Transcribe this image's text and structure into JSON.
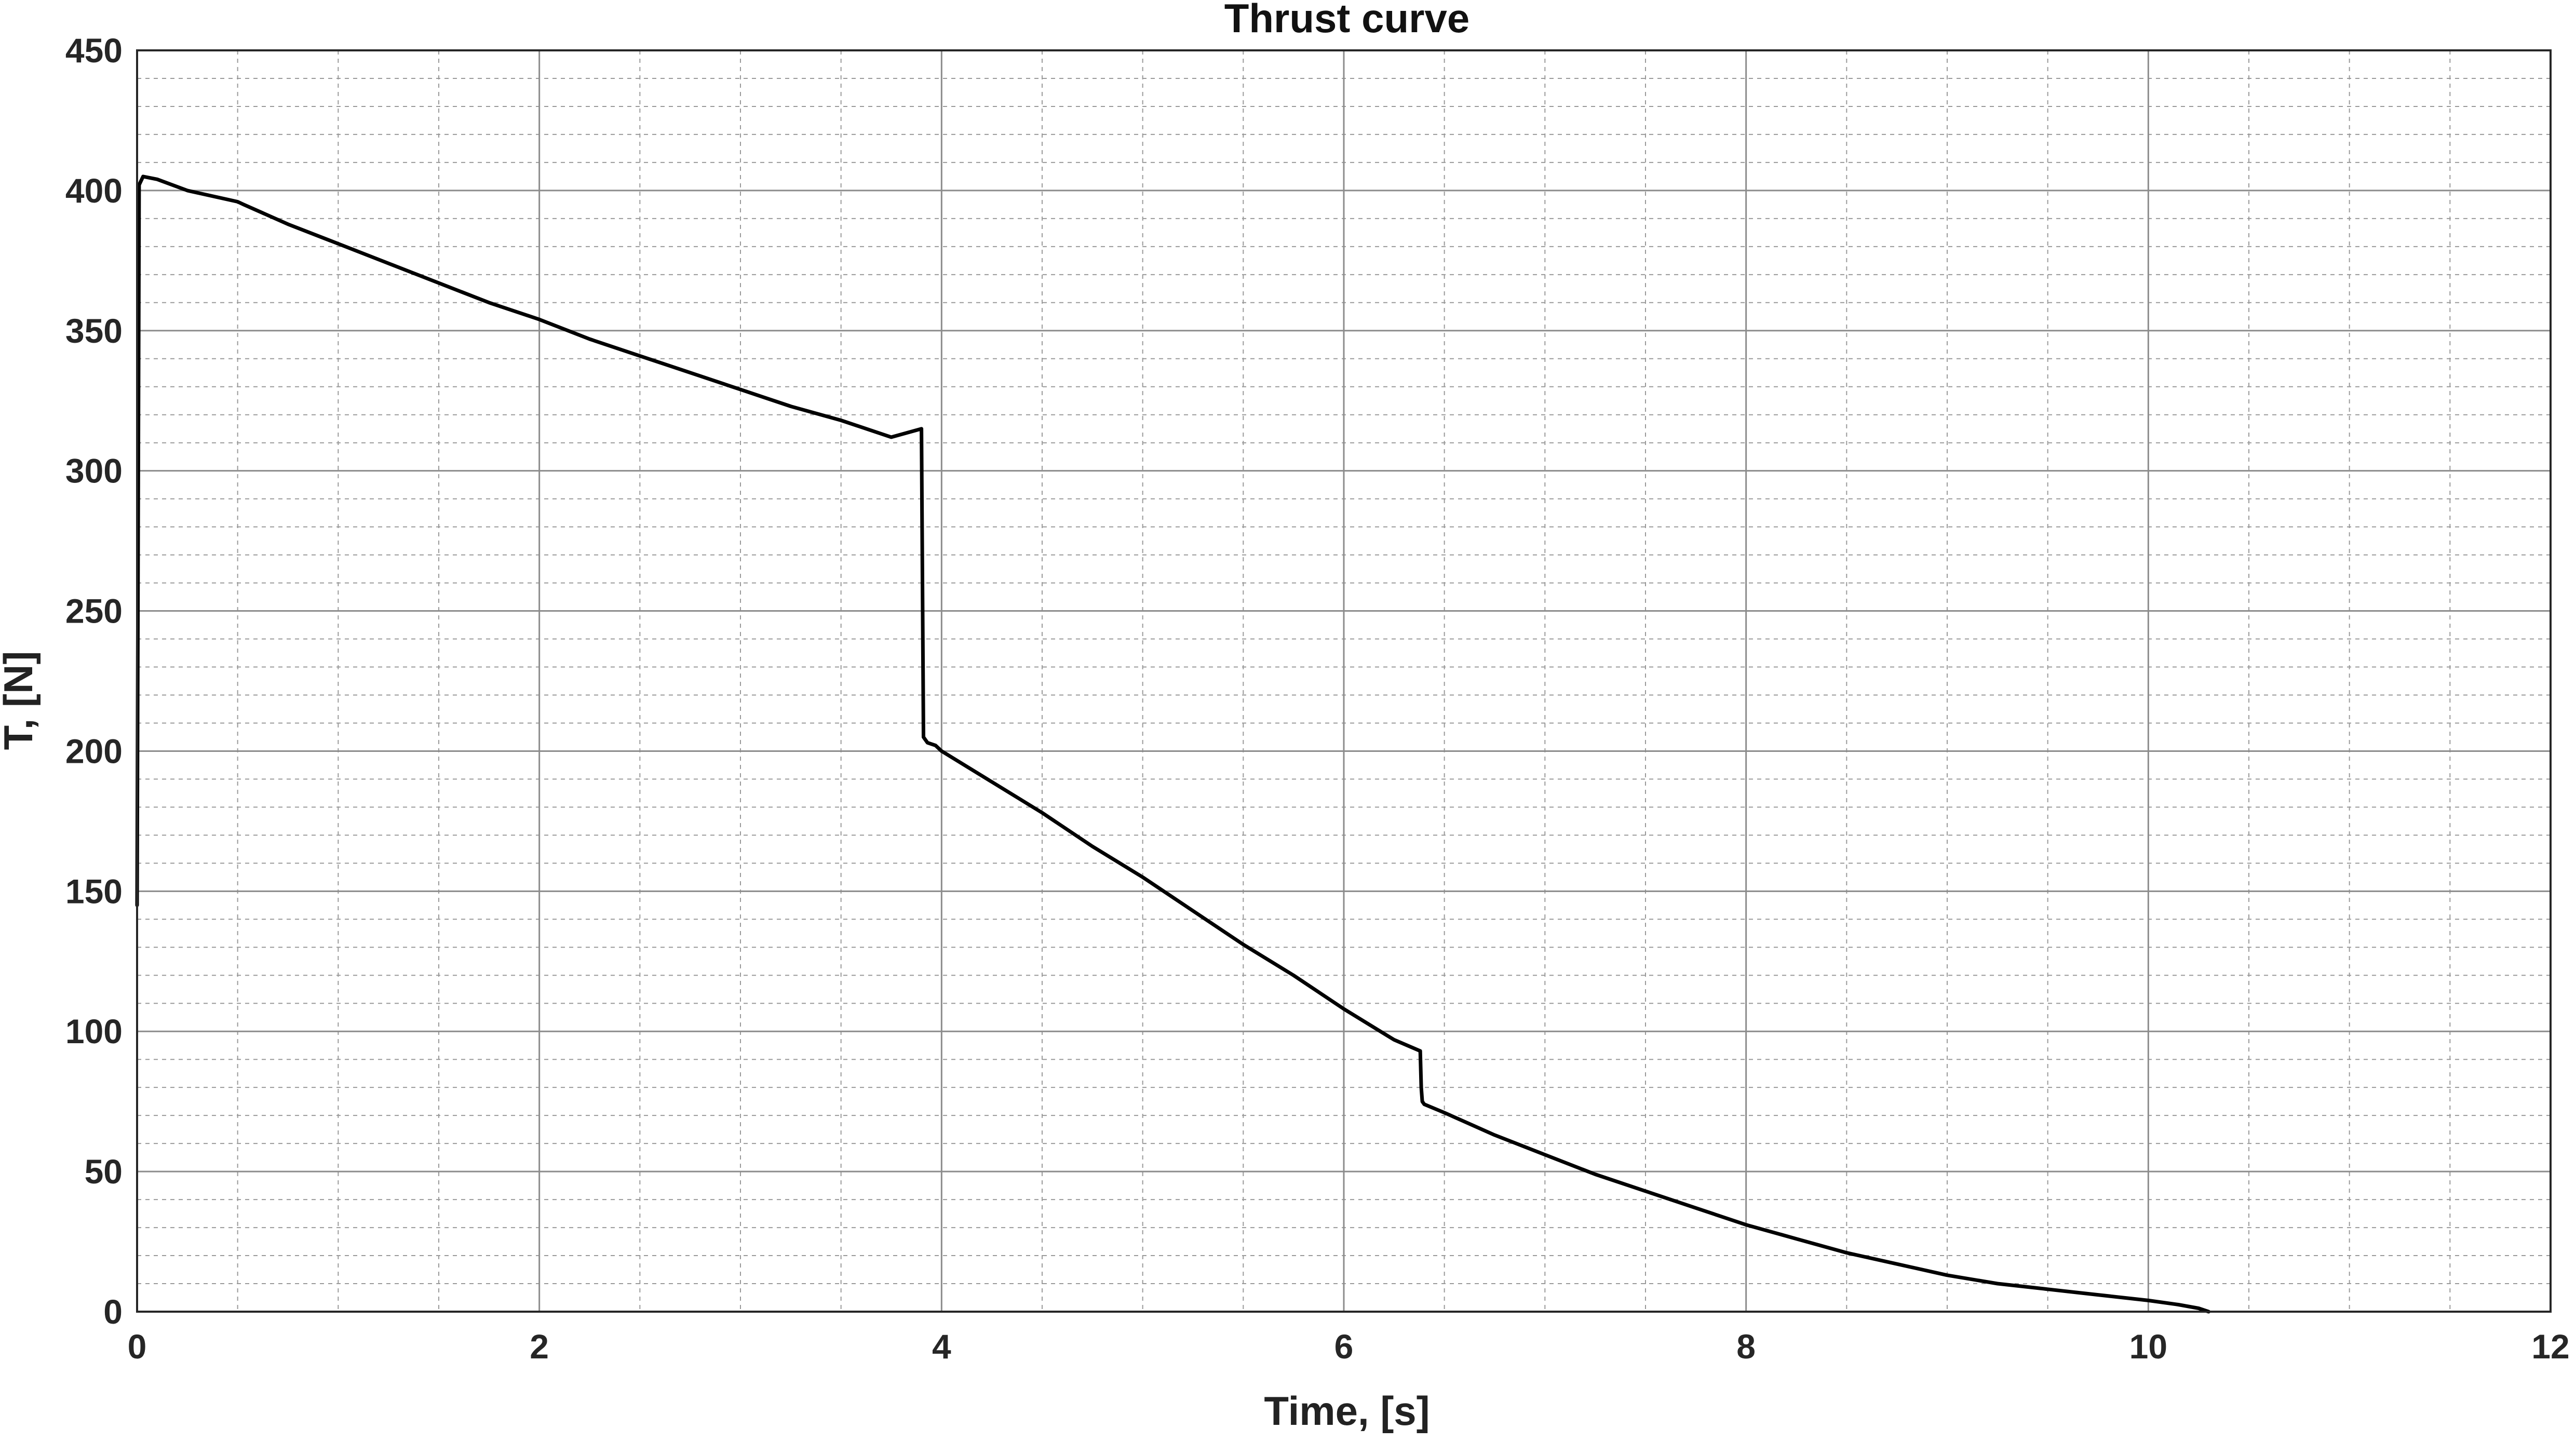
{
  "chart_data": {
    "type": "line",
    "title": "Thrust curve",
    "xlabel": "Time, [s]",
    "ylabel": "T, [N]",
    "xlim": [
      0,
      12
    ],
    "ylim": [
      0,
      450
    ],
    "xticks": [
      0,
      2,
      4,
      6,
      8,
      10,
      12
    ],
    "yticks": [
      0,
      50,
      100,
      150,
      200,
      250,
      300,
      350,
      400,
      450
    ],
    "x_minor_step": 0.5,
    "y_minor_step": 10,
    "grid": true,
    "minor_grid": true,
    "legend": "none",
    "line_color": "#000000",
    "series": [
      {
        "x": [
          0.0,
          0.01,
          0.03,
          0.1,
          0.25,
          0.5,
          0.53,
          0.75,
          1.0,
          1.25,
          1.5,
          1.75,
          2.0,
          2.25,
          2.5,
          2.75,
          3.0,
          3.25,
          3.5,
          3.75,
          3.9,
          3.91,
          3.92,
          3.93,
          3.97,
          4.0,
          4.25,
          4.5,
          4.75,
          5.0,
          5.25,
          5.5,
          5.75,
          6.0,
          6.25,
          6.38,
          6.385,
          6.39,
          6.4,
          6.5,
          6.75,
          7.0,
          7.25,
          7.5,
          7.75,
          8.0,
          8.25,
          8.5,
          8.75,
          9.0,
          9.25,
          9.5,
          9.75,
          10.0,
          10.15,
          10.25,
          10.3
        ],
        "y": [
          145,
          402,
          405,
          404,
          400,
          396,
          395,
          388,
          381,
          374,
          367,
          360,
          354,
          347,
          341,
          335,
          329,
          323,
          318,
          312,
          315,
          205,
          204,
          203,
          202,
          200,
          189,
          178,
          166,
          155,
          143,
          131,
          120,
          108,
          97,
          93,
          80,
          75,
          74,
          71,
          63,
          56,
          49,
          43,
          37,
          31,
          26,
          21,
          17,
          13,
          10,
          8,
          6,
          4,
          2.5,
          1.2,
          0
        ]
      }
    ]
  }
}
